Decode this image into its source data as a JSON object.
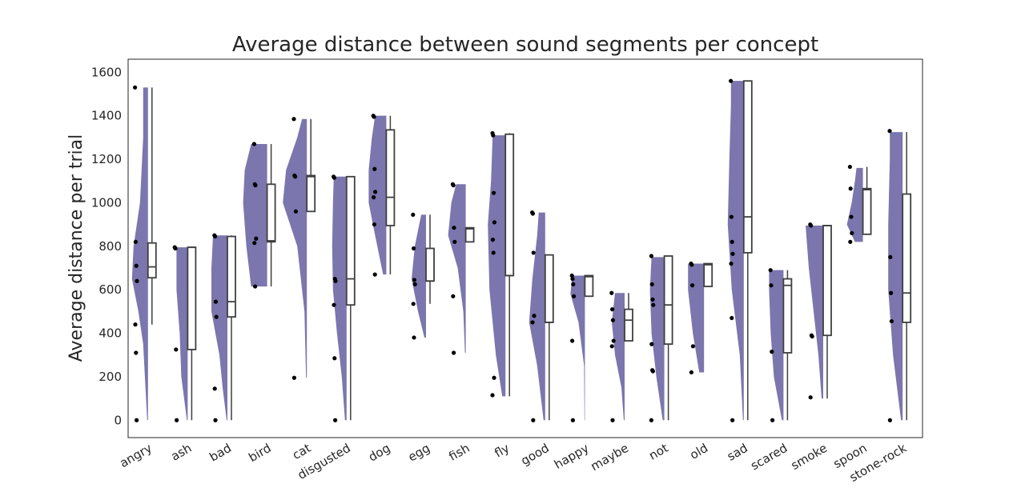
{
  "chart_data": {
    "type": "raincloud",
    "title": "Average distance between sound segments per concept",
    "xlabel": "",
    "ylabel": "Average distance per trial",
    "ylim": [
      -80,
      1660
    ],
    "yticks": [
      0,
      200,
      400,
      600,
      800,
      1000,
      1200,
      1400,
      1600
    ],
    "grid": false,
    "violin_color": "#7b76ad",
    "categories": [
      "angry",
      "ash",
      "bad",
      "bird",
      "cat",
      "disgusted",
      "dog",
      "egg",
      "fish",
      "fly",
      "good",
      "happy",
      "maybe",
      "not",
      "old",
      "sad",
      "scared",
      "smoke",
      "spoon",
      "stone-rock"
    ],
    "groups": [
      {
        "points": [
          1530,
          820,
          710,
          640,
          440,
          310,
          0
        ],
        "box": {
          "min": 440,
          "q1": 655,
          "median": 705,
          "q3": 815,
          "max": 1530
        },
        "violin": [
          [
            0,
            1
          ],
          [
            350,
            6
          ],
          [
            500,
            12
          ],
          [
            650,
            20
          ],
          [
            800,
            18
          ],
          [
            1000,
            10
          ],
          [
            1300,
            6
          ],
          [
            1530,
            6
          ]
        ]
      },
      {
        "points": [
          795,
          790,
          325,
          0
        ],
        "box": {
          "min": 0,
          "q1": 325,
          "median": 795,
          "q3": 795,
          "max": 795
        },
        "violin": [
          [
            0,
            1
          ],
          [
            200,
            8
          ],
          [
            400,
            10
          ],
          [
            600,
            14
          ],
          [
            795,
            14
          ]
        ]
      },
      {
        "points": [
          850,
          845,
          545,
          475,
          145,
          0
        ],
        "box": {
          "min": 0,
          "q1": 475,
          "median": 545,
          "q3": 845,
          "max": 850
        },
        "violin": [
          [
            0,
            1
          ],
          [
            150,
            6
          ],
          [
            300,
            10
          ],
          [
            500,
            20
          ],
          [
            700,
            20
          ],
          [
            850,
            18
          ]
        ]
      },
      {
        "points": [
          1270,
          1085,
          1080,
          835,
          815,
          615
        ],
        "box": {
          "min": 615,
          "q1": 820,
          "median": 825,
          "q3": 1085,
          "max": 1270
        },
        "violin": [
          [
            615,
            20
          ],
          [
            800,
            26
          ],
          [
            1000,
            30
          ],
          [
            1150,
            28
          ],
          [
            1270,
            20
          ]
        ]
      },
      {
        "points": [
          1385,
          1125,
          1120,
          960,
          195
        ],
        "box": {
          "min": 960,
          "q1": 960,
          "median": 1120,
          "q3": 1125,
          "max": 1385
        },
        "violin": [
          [
            195,
            1
          ],
          [
            500,
            3
          ],
          [
            800,
            12
          ],
          [
            1000,
            30
          ],
          [
            1150,
            26
          ],
          [
            1300,
            12
          ],
          [
            1385,
            6
          ]
        ]
      },
      {
        "points": [
          1120,
          1115,
          650,
          640,
          530,
          285,
          0
        ],
        "box": {
          "min": 0,
          "q1": 530,
          "median": 650,
          "q3": 1120,
          "max": 1120
        },
        "violin": [
          [
            0,
            2
          ],
          [
            200,
            6
          ],
          [
            400,
            12
          ],
          [
            600,
            17
          ],
          [
            800,
            18
          ],
          [
            1000,
            17
          ],
          [
            1120,
            16
          ]
        ]
      },
      {
        "points": [
          1400,
          1395,
          1155,
          1050,
          1025,
          900,
          670
        ],
        "box": {
          "min": 670,
          "q1": 895,
          "median": 1025,
          "q3": 1335,
          "max": 1400
        },
        "violin": [
          [
            670,
            4
          ],
          [
            850,
            14
          ],
          [
            1000,
            22
          ],
          [
            1150,
            22
          ],
          [
            1300,
            18
          ],
          [
            1400,
            14
          ]
        ]
      },
      {
        "points": [
          945,
          790,
          645,
          625,
          535,
          380
        ],
        "box": {
          "min": 535,
          "q1": 640,
          "median": 640,
          "q3": 790,
          "max": 945
        },
        "violin": [
          [
            380,
            2
          ],
          [
            500,
            10
          ],
          [
            650,
            18
          ],
          [
            800,
            14
          ],
          [
            945,
            6
          ]
        ]
      },
      {
        "points": [
          1085,
          1080,
          885,
          820,
          570,
          310
        ],
        "box": {
          "min": 820,
          "q1": 820,
          "median": 880,
          "q3": 885,
          "max": 885
        },
        "violin": [
          [
            310,
            1
          ],
          [
            500,
            3
          ],
          [
            700,
            10
          ],
          [
            850,
            22
          ],
          [
            1000,
            18
          ],
          [
            1085,
            12
          ]
        ]
      },
      {
        "points": [
          1320,
          1310,
          1045,
          910,
          830,
          770,
          195,
          115
        ],
        "box": {
          "min": 110,
          "q1": 665,
          "median": 665,
          "q3": 1315,
          "max": 1320
        },
        "violin": [
          [
            110,
            4
          ],
          [
            300,
            12
          ],
          [
            600,
            20
          ],
          [
            900,
            22
          ],
          [
            1100,
            18
          ],
          [
            1310,
            16
          ]
        ]
      },
      {
        "points": [
          955,
          950,
          770,
          480,
          450,
          0
        ],
        "box": {
          "min": 0,
          "q1": 450,
          "median": 450,
          "q3": 760,
          "max": 760
        },
        "violin": [
          [
            0,
            2
          ],
          [
            250,
            10
          ],
          [
            450,
            20
          ],
          [
            650,
            16
          ],
          [
            850,
            10
          ],
          [
            955,
            8
          ]
        ]
      },
      {
        "points": [
          665,
          650,
          625,
          570,
          365,
          0
        ],
        "box": {
          "min": 570,
          "q1": 570,
          "median": 660,
          "q3": 665,
          "max": 665
        },
        "violin": [
          [
            0,
            0.5
          ],
          [
            250,
            1
          ],
          [
            450,
            8
          ],
          [
            580,
            18
          ],
          [
            665,
            16
          ]
        ]
      },
      {
        "points": [
          585,
          510,
          460,
          365,
          340,
          0
        ],
        "box": {
          "min": 365,
          "q1": 365,
          "median": 460,
          "q3": 510,
          "max": 585
        },
        "violin": [
          [
            0,
            1
          ],
          [
            150,
            4
          ],
          [
            300,
            12
          ],
          [
            450,
            16
          ],
          [
            585,
            12
          ]
        ]
      },
      {
        "points": [
          755,
          625,
          555,
          530,
          350,
          230,
          225,
          0
        ],
        "box": {
          "min": 0,
          "q1": 350,
          "median": 530,
          "q3": 755,
          "max": 755
        },
        "violin": [
          [
            0,
            2
          ],
          [
            200,
            10
          ],
          [
            400,
            16
          ],
          [
            600,
            18
          ],
          [
            750,
            16
          ]
        ]
      },
      {
        "points": [
          720,
          715,
          620,
          340,
          220
        ],
        "box": {
          "min": 615,
          "q1": 615,
          "median": 715,
          "q3": 720,
          "max": 720
        },
        "violin": [
          [
            220,
            6
          ],
          [
            400,
            14
          ],
          [
            600,
            20
          ],
          [
            720,
            20
          ]
        ]
      },
      {
        "points": [
          1560,
          935,
          820,
          765,
          720,
          470,
          0
        ],
        "box": {
          "min": 0,
          "q1": 770,
          "median": 935,
          "q3": 1560,
          "max": 1560
        },
        "violin": [
          [
            0,
            1
          ],
          [
            300,
            5
          ],
          [
            600,
            15
          ],
          [
            900,
            20
          ],
          [
            1200,
            18
          ],
          [
            1450,
            16
          ],
          [
            1560,
            16
          ]
        ]
      },
      {
        "points": [
          690,
          620,
          315,
          0
        ],
        "box": {
          "min": 0,
          "q1": 310,
          "median": 620,
          "q3": 650,
          "max": 690
        },
        "violin": [
          [
            0,
            2
          ],
          [
            200,
            12
          ],
          [
            400,
            16
          ],
          [
            600,
            18
          ],
          [
            690,
            18
          ]
        ]
      },
      {
        "points": [
          900,
          895,
          390,
          385,
          105
        ],
        "box": {
          "min": 100,
          "q1": 390,
          "median": 895,
          "q3": 895,
          "max": 895
        },
        "violin": [
          [
            100,
            2
          ],
          [
            300,
            6
          ],
          [
            500,
            12
          ],
          [
            700,
            18
          ],
          [
            895,
            22
          ]
        ]
      },
      {
        "points": [
          1165,
          1065,
          935,
          860,
          820
        ],
        "box": {
          "min": 855,
          "q1": 855,
          "median": 1060,
          "q3": 1065,
          "max": 1165
        },
        "violin": [
          [
            820,
            10
          ],
          [
            900,
            20
          ],
          [
            1000,
            14
          ],
          [
            1100,
            10
          ],
          [
            1160,
            8
          ]
        ]
      },
      {
        "points": [
          1330,
          750,
          585,
          455,
          0
        ],
        "box": {
          "min": 0,
          "q1": 450,
          "median": 585,
          "q3": 1040,
          "max": 1325
        },
        "violin": [
          [
            0,
            2
          ],
          [
            300,
            12
          ],
          [
            600,
            18
          ],
          [
            900,
            18
          ],
          [
            1200,
            16
          ],
          [
            1325,
            16
          ]
        ]
      }
    ]
  }
}
